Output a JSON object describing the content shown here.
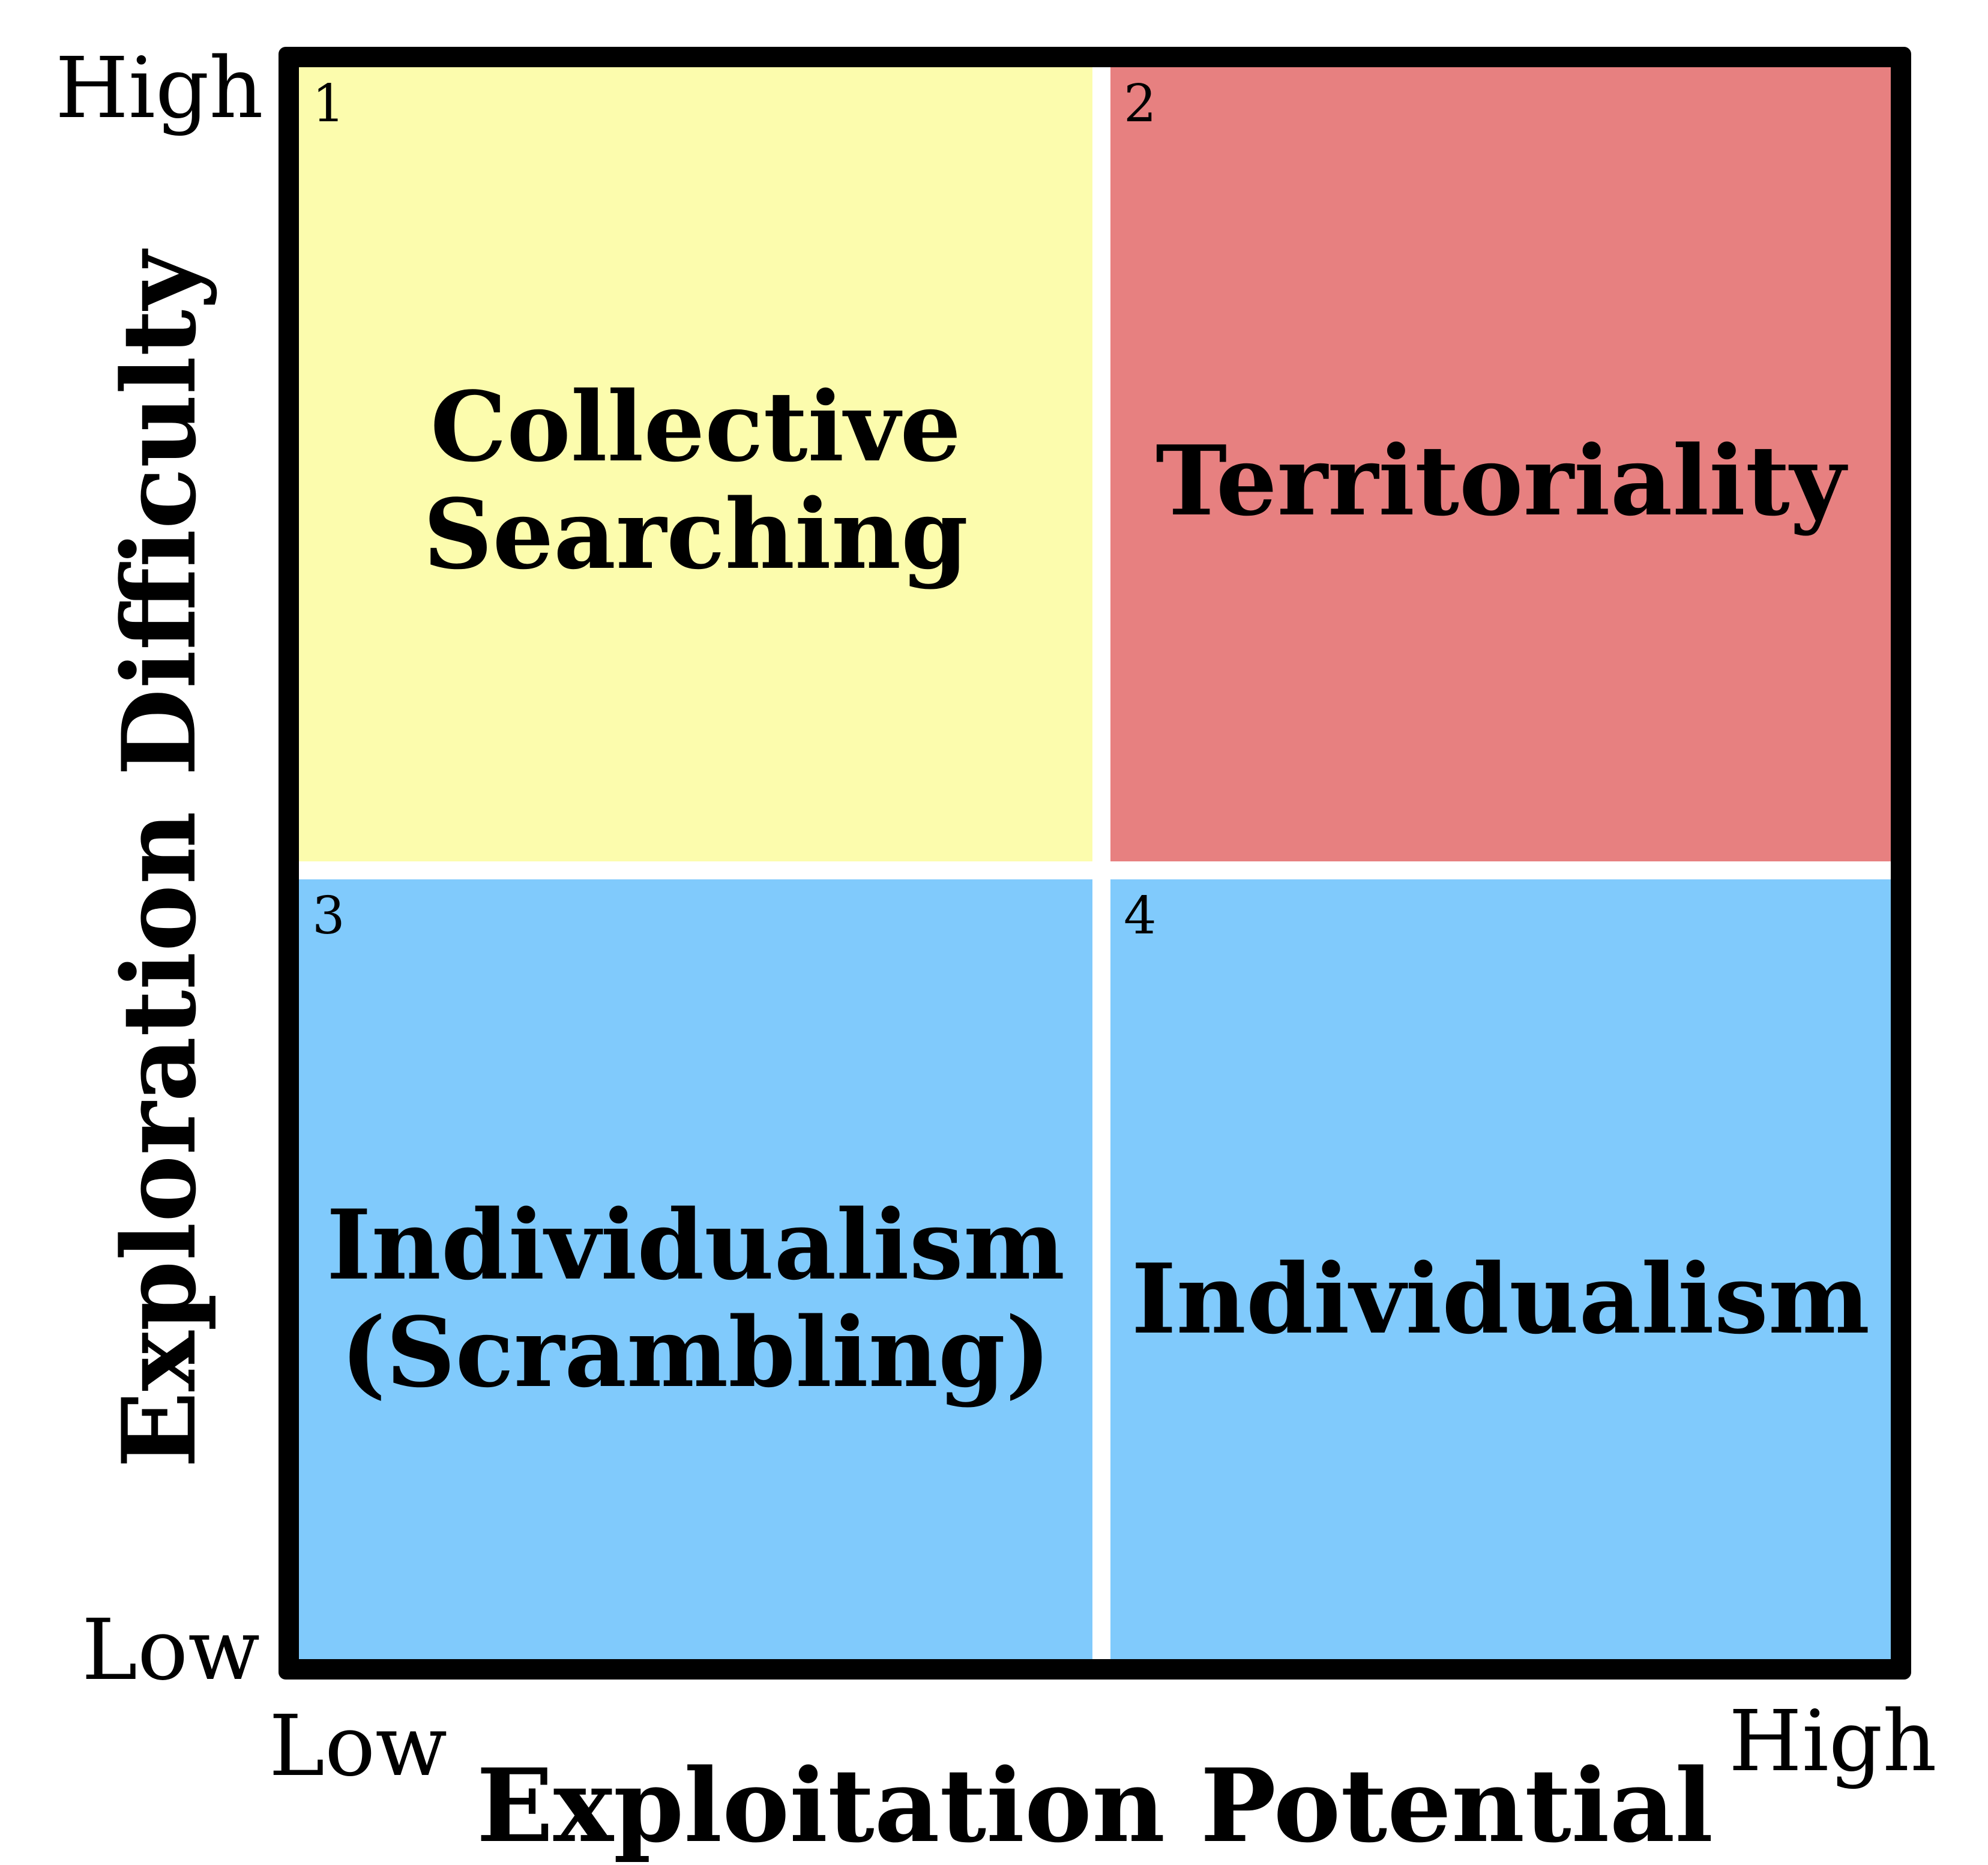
{
  "y_axis": {
    "title": "Exploration Difficulty",
    "high_label": "High",
    "low_label": "Low"
  },
  "x_axis": {
    "title": "Exploitation Potential",
    "low_label": "Low",
    "high_label": "High"
  },
  "quadrants": [
    {
      "number": "1",
      "label_lines": [
        "Collective",
        "Searching"
      ],
      "color": "#FCFCAD"
    },
    {
      "number": "2",
      "label_lines": [
        "Territoriality"
      ],
      "color": "#E78080"
    },
    {
      "number": "3",
      "label_lines": [
        "Individualism",
        "(Scrambling)"
      ],
      "color": "#80CAFC"
    },
    {
      "number": "4",
      "label_lines": [
        "Individualism"
      ],
      "color": "#80CAFC"
    }
  ]
}
